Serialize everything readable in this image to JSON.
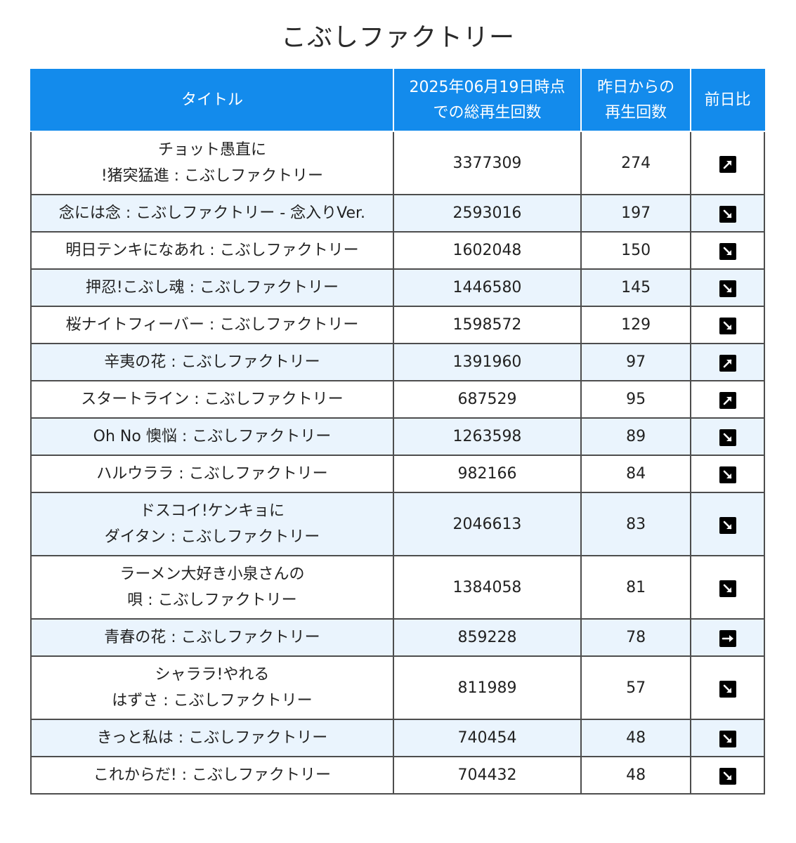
{
  "page": {
    "title": "こぶしファクトリー"
  },
  "table": {
    "headers": {
      "title": "タイトル",
      "total_line1": "2025年06月19日時点",
      "total_line2": "での総再生回数",
      "daily_line1": "昨日からの",
      "daily_line2": "再生回数",
      "ratio": "前日比"
    },
    "rows": [
      {
        "title_line1": "チョット愚直に",
        "title_line2": "!猪突猛進 : こぶしファクトリー",
        "total": "3377309",
        "daily": "274",
        "trend": "up-right-arrow-icon"
      },
      {
        "title_line1": "念には念 : こぶしファクトリー - 念入りVer.",
        "title_line2": "",
        "total": "2593016",
        "daily": "197",
        "trend": "down-right-arrow-icon"
      },
      {
        "title_line1": "明日テンキになあれ : こぶしファクトリー",
        "title_line2": "",
        "total": "1602048",
        "daily": "150",
        "trend": "down-right-arrow-icon"
      },
      {
        "title_line1": "押忍!こぶし魂 : こぶしファクトリー",
        "title_line2": "",
        "total": "1446580",
        "daily": "145",
        "trend": "down-right-arrow-icon"
      },
      {
        "title_line1": "桜ナイトフィーバー : こぶしファクトリー",
        "title_line2": "",
        "total": "1598572",
        "daily": "129",
        "trend": "down-right-arrow-icon"
      },
      {
        "title_line1": "辛夷の花 : こぶしファクトリー",
        "title_line2": "",
        "total": "1391960",
        "daily": "97",
        "trend": "up-right-arrow-icon"
      },
      {
        "title_line1": "スタートライン : こぶしファクトリー",
        "title_line2": "",
        "total": "687529",
        "daily": "95",
        "trend": "up-right-arrow-icon"
      },
      {
        "title_line1": "Oh No 懊悩 : こぶしファクトリー",
        "title_line2": "",
        "total": "1263598",
        "daily": "89",
        "trend": "down-right-arrow-icon"
      },
      {
        "title_line1": "ハルウララ : こぶしファクトリー",
        "title_line2": "",
        "total": "982166",
        "daily": "84",
        "trend": "down-right-arrow-icon"
      },
      {
        "title_line1": "ドスコイ!ケンキョに",
        "title_line2": "ダイタン : こぶしファクトリー",
        "total": "2046613",
        "daily": "83",
        "trend": "down-right-arrow-icon"
      },
      {
        "title_line1": "ラーメン大好き小泉さんの",
        "title_line2": "唄 : こぶしファクトリー",
        "total": "1384058",
        "daily": "81",
        "trend": "down-right-arrow-icon"
      },
      {
        "title_line1": "青春の花 : こぶしファクトリー",
        "title_line2": "",
        "total": "859228",
        "daily": "78",
        "trend": "right-arrow-icon"
      },
      {
        "title_line1": "シャララ!やれる",
        "title_line2": "はずさ : こぶしファクトリー",
        "total": "811989",
        "daily": "57",
        "trend": "down-right-arrow-icon"
      },
      {
        "title_line1": "きっと私は : こぶしファクトリー",
        "title_line2": "",
        "total": "740454",
        "daily": "48",
        "trend": "down-right-arrow-icon"
      },
      {
        "title_line1": "これからだ! : こぶしファクトリー",
        "title_line2": "",
        "total": "704432",
        "daily": "48",
        "trend": "down-right-arrow-icon"
      }
    ]
  },
  "colors": {
    "header_bg": "#138bec",
    "header_text": "#ffffff",
    "row_alt_bg": "#eaf4fd",
    "icon_bg": "#000000"
  }
}
